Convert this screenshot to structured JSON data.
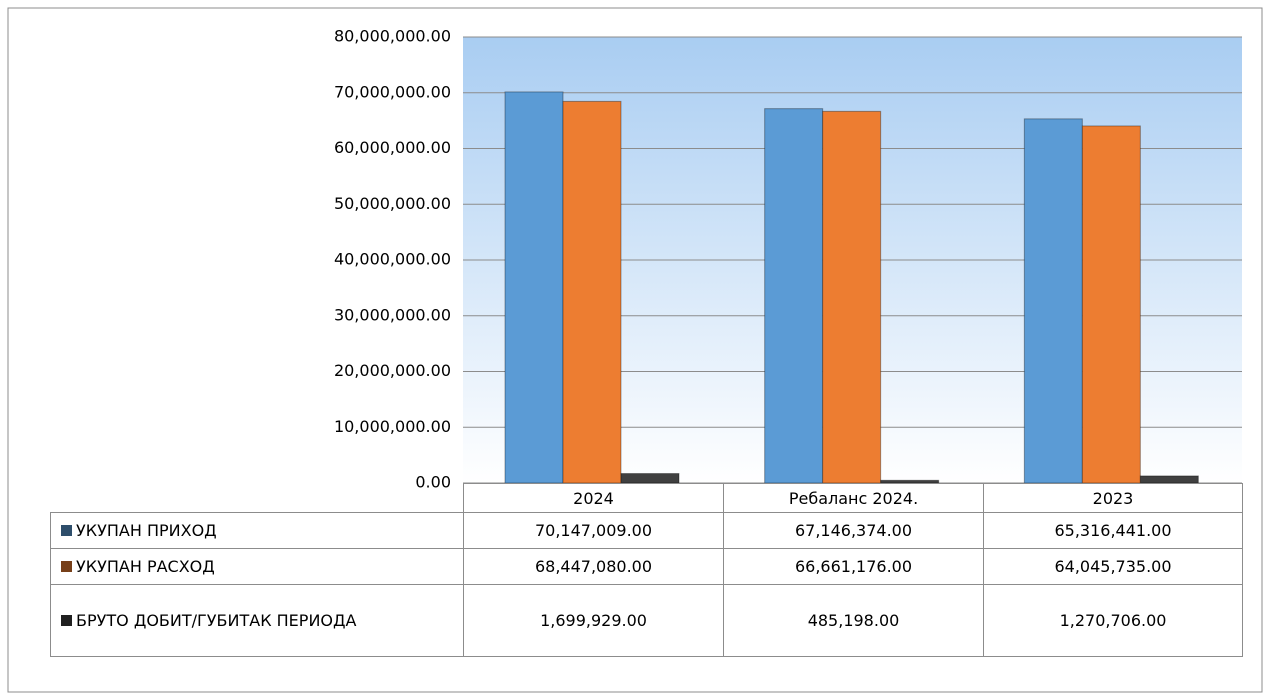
{
  "chart_data": {
    "type": "bar",
    "categories": [
      "2024",
      "Ребаланс 2024.",
      "2023"
    ],
    "series": [
      {
        "name": "УКУПАН ПРИХОД",
        "color": "#5b9bd5",
        "values": [
          70147009,
          67146374,
          65316441
        ],
        "value_labels": [
          "70,147,009.00",
          "67,146,374.00",
          "65,316,441.00"
        ]
      },
      {
        "name": "УКУПАН РАСХОД",
        "color": "#ed7d31",
        "values": [
          68447080,
          66661176,
          64045735
        ],
        "value_labels": [
          "68,447,080.00",
          "66,661,176.00",
          "64,045,735.00"
        ]
      },
      {
        "name": "БРУТО ДОБИТ/ГУБИТАК ПЕРИОДА",
        "color": "#404040",
        "values": [
          1699929,
          485198,
          1270706
        ],
        "value_labels": [
          "1,699,929.00",
          "485,198.00",
          "1,270,706.00"
        ]
      }
    ],
    "ylim": [
      0,
      80000000
    ],
    "yticks": [
      {
        "value": 0,
        "label": "0.00"
      },
      {
        "value": 10000000,
        "label": "10,000,000.00"
      },
      {
        "value": 20000000,
        "label": "20,000,000.00"
      },
      {
        "value": 30000000,
        "label": "30,000,000.00"
      },
      {
        "value": 40000000,
        "label": "40,000,000.00"
      },
      {
        "value": 50000000,
        "label": "50,000,000.00"
      },
      {
        "value": 60000000,
        "label": "60,000,000.00"
      },
      {
        "value": 70000000,
        "label": "70,000,000.00"
      },
      {
        "value": 80000000,
        "label": "80,000,000.00"
      }
    ],
    "grid": true
  }
}
